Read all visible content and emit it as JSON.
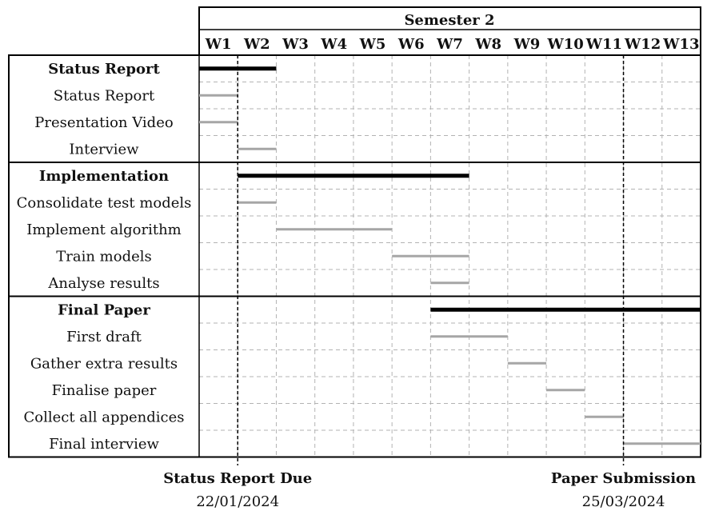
{
  "semester_label": "Semester 2",
  "weeks": [
    "W1",
    "W2",
    "W3",
    "W4",
    "W5",
    "W6",
    "W7",
    "W8",
    "W9",
    "W10",
    "W11",
    "W12",
    "W13"
  ],
  "groups": [
    {
      "name": "Status Report",
      "span": [
        1,
        2
      ],
      "tasks": [
        {
          "name": "Status Report",
          "span": [
            1,
            1
          ]
        },
        {
          "name": "Presentation Video",
          "span": [
            1,
            1
          ]
        },
        {
          "name": "Interview",
          "span": [
            2,
            2
          ]
        }
      ]
    },
    {
      "name": "Implementation",
      "span": [
        2,
        7
      ],
      "tasks": [
        {
          "name": "Consolidate test models",
          "span": [
            2,
            2
          ]
        },
        {
          "name": "Implement algorithm",
          "span": [
            3,
            5
          ]
        },
        {
          "name": "Train models",
          "span": [
            6,
            7
          ]
        },
        {
          "name": "Analyse results",
          "span": [
            7,
            7
          ]
        }
      ]
    },
    {
      "name": "Final Paper",
      "span": [
        7,
        13
      ],
      "tasks": [
        {
          "name": "First draft",
          "span": [
            7,
            8
          ]
        },
        {
          "name": "Gather extra results",
          "span": [
            9,
            9
          ]
        },
        {
          "name": "Finalise paper",
          "span": [
            10,
            10
          ]
        },
        {
          "name": "Collect all appendices",
          "span": [
            11,
            11
          ]
        },
        {
          "name": "Final interview",
          "span": [
            12,
            13
          ]
        }
      ]
    }
  ],
  "milestones": [
    {
      "label": "Status Report Due",
      "date": "22/01/2024",
      "after_week": 1
    },
    {
      "label": "Paper Submission",
      "date": "25/03/2024",
      "after_week": 11
    }
  ],
  "colors": {
    "group_bar": "#000000",
    "task_bar": "#a6a6a6",
    "grid": "#b3b3b3"
  }
}
